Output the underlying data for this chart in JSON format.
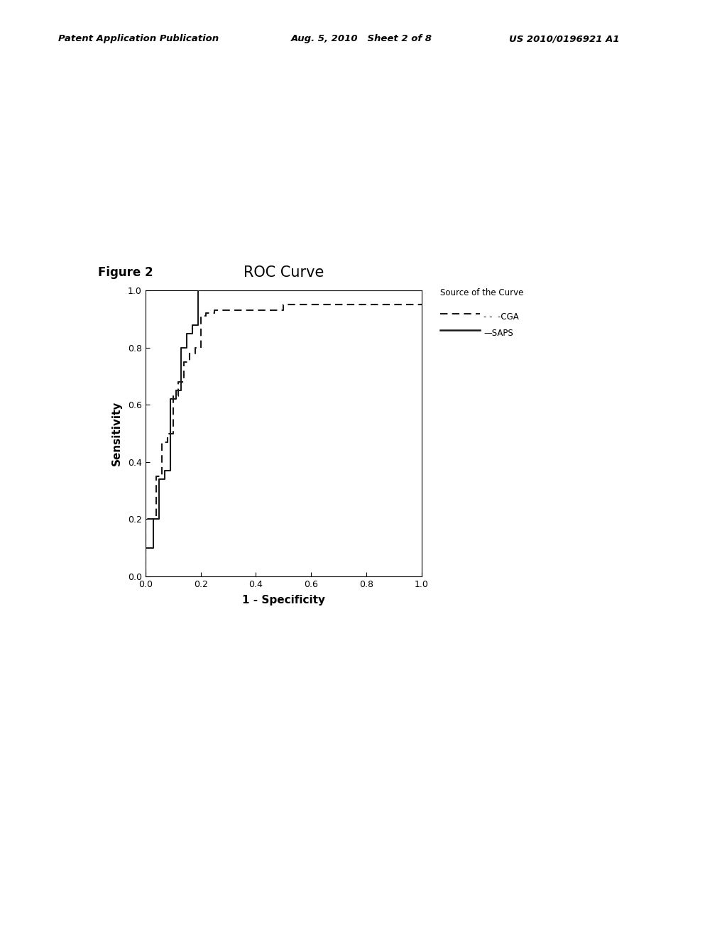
{
  "title": "ROC Curve",
  "figure_label": "Figure 2",
  "xlabel": "1 - Specificity",
  "ylabel": "Sensitivity",
  "xlim": [
    0.0,
    1.0
  ],
  "ylim": [
    0.0,
    1.0
  ],
  "xticks": [
    0.0,
    0.2,
    0.4,
    0.6,
    0.8,
    1.0
  ],
  "yticks": [
    0.0,
    0.2,
    0.4,
    0.6,
    0.8,
    1.0
  ],
  "legend_title": "Source of the Curve",
  "legend_entries": [
    "-CGA",
    "SAPS"
  ],
  "background_color": "#ffffff",
  "line_color": "#1a1a1a",
  "header_left": "Patent Application Publication",
  "header_mid": "Aug. 5, 2010   Sheet 2 of 8",
  "header_right": "US 2010/0196921 A1",
  "saps_x": [
    0.0,
    0.0,
    0.03,
    0.03,
    0.05,
    0.05,
    0.07,
    0.07,
    0.09,
    0.09,
    0.11,
    0.11,
    0.13,
    0.13,
    0.15,
    0.15,
    0.17,
    0.17,
    0.19,
    0.19,
    0.21,
    0.21,
    1.0
  ],
  "saps_y": [
    0.0,
    0.1,
    0.1,
    0.2,
    0.2,
    0.34,
    0.34,
    0.37,
    0.37,
    0.62,
    0.62,
    0.65,
    0.65,
    0.8,
    0.8,
    0.85,
    0.85,
    0.88,
    0.88,
    1.0,
    1.0,
    1.0,
    1.0
  ],
  "cga_x": [
    0.0,
    0.0,
    0.04,
    0.04,
    0.06,
    0.06,
    0.08,
    0.08,
    0.1,
    0.1,
    0.12,
    0.12,
    0.14,
    0.14,
    0.16,
    0.16,
    0.18,
    0.18,
    0.2,
    0.2,
    0.22,
    0.22,
    0.25,
    0.25,
    0.35,
    0.35,
    0.5,
    0.5,
    1.0
  ],
  "cga_y": [
    0.0,
    0.2,
    0.2,
    0.35,
    0.35,
    0.47,
    0.47,
    0.5,
    0.5,
    0.63,
    0.63,
    0.68,
    0.68,
    0.75,
    0.75,
    0.78,
    0.78,
    0.8,
    0.8,
    0.91,
    0.91,
    0.92,
    0.92,
    0.93,
    0.93,
    0.93,
    0.93,
    0.95,
    0.95
  ]
}
